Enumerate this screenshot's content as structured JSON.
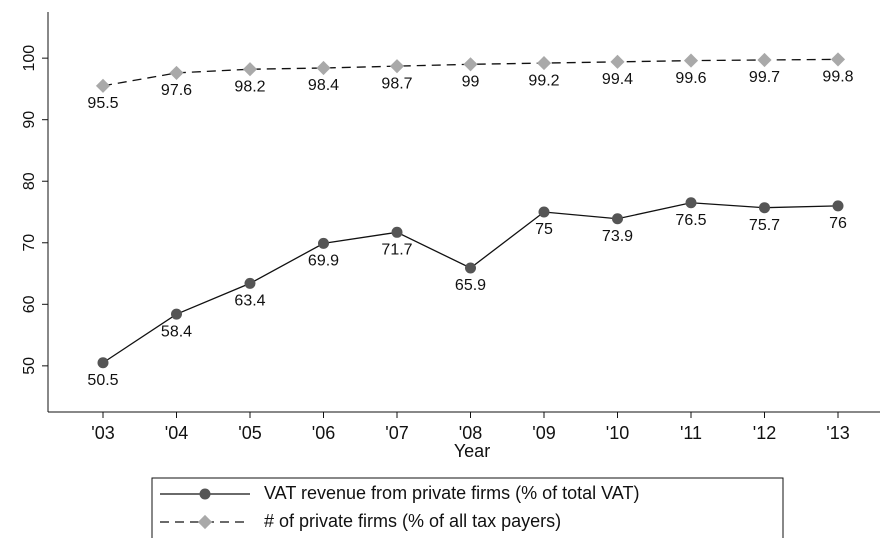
{
  "chart_data": {
    "type": "line",
    "x_label": "Year",
    "categories": [
      "'03",
      "'04",
      "'05",
      "'06",
      "'07",
      "'08",
      "'09",
      "'10",
      "'11",
      "'12",
      "'13"
    ],
    "series": [
      {
        "name": "VAT revenue from private firms (% of total VAT)",
        "color": "#555555",
        "line_style": "solid",
        "values": [
          50.5,
          58.4,
          63.4,
          69.9,
          71.7,
          65.9,
          75,
          73.9,
          76.5,
          75.7,
          76
        ]
      },
      {
        "name": "# of private firms (% of all tax payers)",
        "color": "#a9a9a9",
        "line_style": "dashed",
        "values": [
          95.5,
          97.6,
          98.2,
          98.4,
          98.7,
          99,
          99.2,
          99.4,
          99.6,
          99.7,
          99.8
        ]
      }
    ],
    "ylim": [
      42.5,
      107.5
    ],
    "yticks": [
      50,
      60,
      70,
      80,
      90,
      100
    ],
    "grid": false,
    "legend": "bottom"
  }
}
